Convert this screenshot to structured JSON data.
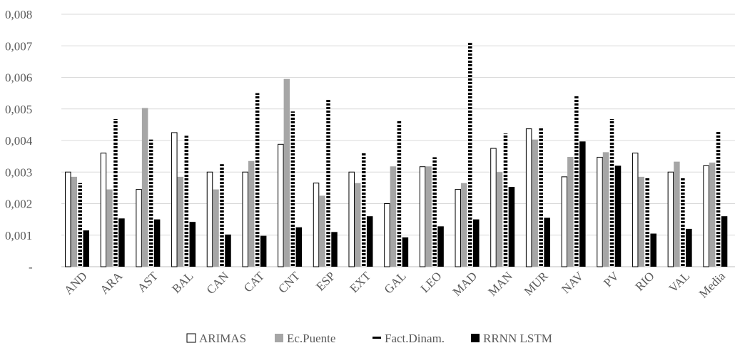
{
  "chart_data": {
    "type": "bar",
    "categories": [
      "AND",
      "ARA",
      "AST",
      "BAL",
      "CAN",
      "CAT",
      "CNT",
      "ESP",
      "EXT",
      "GAL",
      "LEO",
      "MAD",
      "MAN",
      "MUR",
      "NAV",
      "PV",
      "RIO",
      "VAL",
      "Media"
    ],
    "series": [
      {
        "name": "ARIMAS",
        "style": "outline",
        "values": [
          0.003,
          0.0036,
          0.00245,
          0.00425,
          0.003,
          0.003,
          0.00388,
          0.00265,
          0.003,
          0.002,
          0.00317,
          0.00245,
          0.00375,
          0.00437,
          0.00285,
          0.00347,
          0.0036,
          0.003,
          0.0032
        ]
      },
      {
        "name": "Ec.Puente",
        "style": "gray",
        "values": [
          0.00285,
          0.00245,
          0.00503,
          0.00285,
          0.00245,
          0.00335,
          0.00595,
          0.00225,
          0.00265,
          0.00318,
          0.00318,
          0.00265,
          0.003,
          0.00403,
          0.00348,
          0.00363,
          0.00285,
          0.00333,
          0.0033
        ]
      },
      {
        "name": "Fact.Dinam.",
        "style": "dashed",
        "values": [
          0.00265,
          0.00468,
          0.00403,
          0.00415,
          0.00325,
          0.0055,
          0.00492,
          0.00532,
          0.00362,
          0.00462,
          0.00347,
          0.00712,
          0.00422,
          0.00443,
          0.0054,
          0.00468,
          0.00282,
          0.00283,
          0.0043
        ]
      },
      {
        "name": "RRNN LSTM",
        "style": "black",
        "values": [
          0.00115,
          0.00153,
          0.0015,
          0.00142,
          0.00102,
          0.00098,
          0.00125,
          0.0011,
          0.0016,
          0.00093,
          0.00128,
          0.0015,
          0.00253,
          0.00155,
          0.00397,
          0.0032,
          0.00105,
          0.0012,
          0.0016
        ]
      }
    ],
    "yticks": [
      "-",
      "0,001",
      "0,002",
      "0,003",
      "0,004",
      "0,005",
      "0,006",
      "0,007",
      "0,008"
    ],
    "ylim": [
      0,
      0.008
    ],
    "grid": true,
    "legend": "bottom",
    "colors": {
      "outline_stroke": "#000000",
      "gray": "#a6a6a6",
      "black": "#000000",
      "grid": "#d9d9d9",
      "text": "#595959"
    }
  }
}
